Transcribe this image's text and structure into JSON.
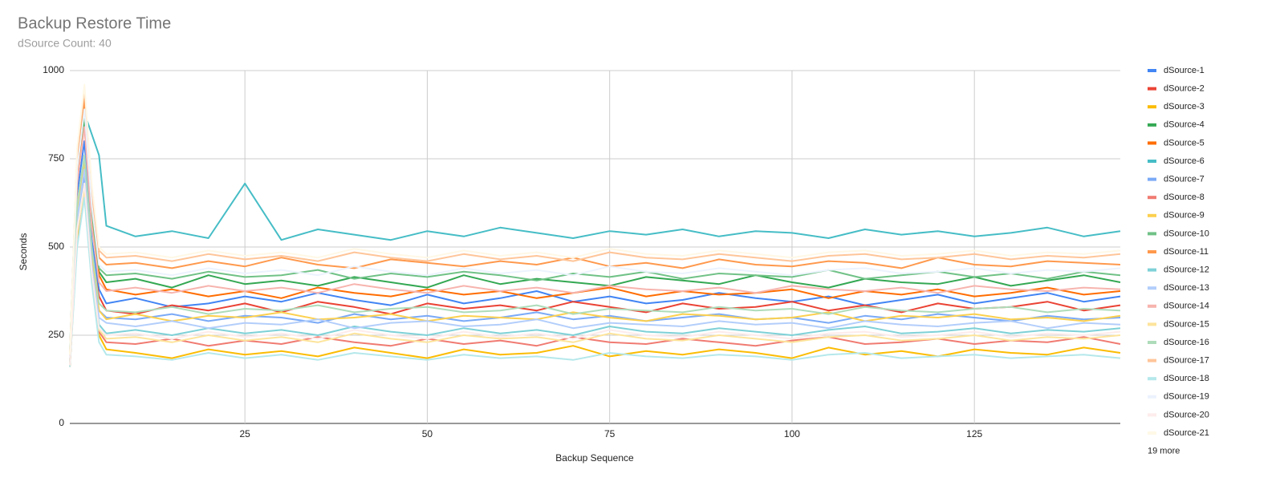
{
  "chart_data": {
    "type": "line",
    "title": "Backup Restore Time",
    "subtitle": "dSource Count: 40",
    "x_label": "Backup Sequence",
    "y_label": "Seconds",
    "xlim": [
      1,
      145
    ],
    "xticks": [
      25,
      50,
      75,
      100,
      125
    ],
    "ylim": [
      0,
      1000
    ],
    "yticks": [
      0,
      250,
      500,
      750,
      1000
    ],
    "grid": true,
    "legend": "right",
    "legend_more": "19 more",
    "x": [
      1,
      2,
      3,
      4,
      5,
      6,
      10,
      15,
      20,
      25,
      30,
      35,
      40,
      45,
      50,
      55,
      60,
      65,
      70,
      75,
      80,
      85,
      90,
      95,
      100,
      105,
      110,
      115,
      120,
      125,
      130,
      135,
      140,
      145
    ],
    "series": [
      {
        "name": "dSource-1",
        "color": "#4285f4",
        "values": [
          180,
          650,
          800,
          520,
          380,
          340,
          355,
          330,
          340,
          360,
          345,
          370,
          350,
          335,
          365,
          340,
          355,
          375,
          345,
          360,
          340,
          350,
          370,
          355,
          345,
          360,
          335,
          350,
          365,
          340,
          355,
          370,
          345,
          360
        ]
      },
      {
        "name": "dSource-2",
        "color": "#ea4335",
        "values": [
          170,
          600,
          720,
          480,
          360,
          320,
          310,
          335,
          320,
          340,
          315,
          345,
          330,
          310,
          340,
          325,
          335,
          320,
          345,
          330,
          315,
          340,
          325,
          330,
          345,
          320,
          335,
          315,
          340,
          325,
          330,
          345,
          320,
          335
        ]
      },
      {
        "name": "dSource-3",
        "color": "#fbbc04",
        "values": [
          160,
          520,
          680,
          420,
          250,
          210,
          200,
          185,
          210,
          195,
          205,
          190,
          215,
          200,
          185,
          210,
          195,
          200,
          220,
          190,
          205,
          195,
          210,
          200,
          185,
          215,
          195,
          205,
          190,
          210,
          200,
          195,
          215,
          200
        ]
      },
      {
        "name": "dSource-4",
        "color": "#34a853",
        "values": [
          190,
          700,
          860,
          560,
          430,
          400,
          410,
          385,
          420,
          395,
          405,
          390,
          415,
          400,
          385,
          420,
          395,
          410,
          400,
          390,
          415,
          405,
          395,
          420,
          400,
          385,
          410,
          400,
          395,
          415,
          390,
          405,
          420,
          400
        ]
      },
      {
        "name": "dSource-5",
        "color": "#ff6d01",
        "values": [
          175,
          680,
          900,
          600,
          420,
          380,
          365,
          380,
          360,
          375,
          355,
          385,
          370,
          360,
          380,
          365,
          375,
          355,
          370,
          385,
          360,
          375,
          365,
          370,
          380,
          355,
          375,
          365,
          380,
          360,
          370,
          385,
          365,
          375
        ]
      },
      {
        "name": "dSource-6",
        "color": "#46bdc6",
        "values": [
          200,
          760,
          880,
          820,
          760,
          560,
          530,
          545,
          525,
          680,
          520,
          550,
          535,
          520,
          545,
          530,
          555,
          540,
          525,
          545,
          535,
          550,
          530,
          545,
          540,
          525,
          550,
          535,
          545,
          530,
          540,
          555,
          530,
          545
        ]
      },
      {
        "name": "dSource-7",
        "color": "#7baaf7",
        "values": [
          170,
          580,
          700,
          460,
          320,
          300,
          295,
          310,
          290,
          305,
          300,
          285,
          310,
          295,
          305,
          290,
          300,
          315,
          295,
          305,
          290,
          300,
          310,
          295,
          300,
          285,
          305,
          295,
          310,
          300,
          290,
          305,
          295,
          300
        ]
      },
      {
        "name": "dSource-8",
        "color": "#f07b72",
        "values": [
          160,
          540,
          650,
          420,
          260,
          230,
          225,
          240,
          220,
          235,
          225,
          245,
          230,
          220,
          240,
          225,
          235,
          220,
          245,
          230,
          225,
          240,
          230,
          220,
          235,
          245,
          225,
          230,
          240,
          225,
          235,
          230,
          245,
          225
        ]
      },
      {
        "name": "dSource-9",
        "color": "#fcd04f",
        "values": [
          170,
          600,
          740,
          480,
          320,
          295,
          310,
          290,
          305,
          300,
          315,
          295,
          300,
          310,
          290,
          305,
          300,
          295,
          315,
          300,
          290,
          310,
          305,
          295,
          300,
          315,
          290,
          305,
          300,
          310,
          295,
          300,
          290,
          305
        ]
      },
      {
        "name": "dSource-10",
        "color": "#71c287",
        "values": [
          185,
          720,
          880,
          600,
          440,
          420,
          425,
          410,
          430,
          415,
          420,
          435,
          410,
          425,
          415,
          430,
          420,
          405,
          425,
          415,
          430,
          410,
          425,
          420,
          415,
          435,
          410,
          420,
          430,
          415,
          425,
          410,
          430,
          420
        ]
      },
      {
        "name": "dSource-11",
        "color": "#ff994d",
        "values": [
          190,
          740,
          920,
          640,
          470,
          450,
          455,
          440,
          460,
          445,
          470,
          450,
          440,
          465,
          455,
          445,
          460,
          450,
          470,
          445,
          455,
          440,
          465,
          450,
          445,
          460,
          455,
          440,
          470,
          450,
          445,
          460,
          455,
          450
        ]
      },
      {
        "name": "dSource-12",
        "color": "#7ed1d7",
        "values": [
          165,
          560,
          680,
          430,
          280,
          255,
          265,
          250,
          270,
          255,
          265,
          250,
          275,
          260,
          250,
          270,
          255,
          265,
          250,
          275,
          260,
          255,
          270,
          260,
          250,
          265,
          275,
          255,
          260,
          270,
          255,
          265,
          260,
          270
        ]
      },
      {
        "name": "dSource-13",
        "color": "#b3cefb",
        "values": [
          170,
          580,
          720,
          450,
          300,
          285,
          275,
          290,
          270,
          285,
          280,
          295,
          270,
          285,
          290,
          275,
          280,
          295,
          270,
          285,
          280,
          275,
          290,
          280,
          285,
          270,
          290,
          280,
          275,
          285,
          290,
          270,
          285,
          280
        ]
      },
      {
        "name": "dSource-14",
        "color": "#f7b4ae",
        "values": [
          180,
          680,
          840,
          560,
          400,
          375,
          385,
          370,
          390,
          375,
          385,
          370,
          395,
          380,
          370,
          390,
          375,
          385,
          370,
          390,
          380,
          375,
          385,
          370,
          390,
          380,
          375,
          385,
          370,
          390,
          380,
          375,
          385,
          380
        ]
      },
      {
        "name": "dSource-15",
        "color": "#fde49b",
        "values": [
          165,
          540,
          660,
          420,
          265,
          240,
          245,
          230,
          250,
          235,
          245,
          230,
          255,
          240,
          230,
          250,
          240,
          245,
          230,
          255,
          240,
          235,
          250,
          240,
          230,
          245,
          250,
          235,
          240,
          250,
          235,
          245,
          240,
          250
        ]
      },
      {
        "name": "dSource-16",
        "color": "#aedcba",
        "values": [
          175,
          620,
          760,
          500,
          340,
          320,
          315,
          330,
          310,
          325,
          320,
          335,
          315,
          325,
          330,
          315,
          320,
          335,
          310,
          325,
          320,
          315,
          330,
          320,
          325,
          310,
          330,
          320,
          315,
          325,
          330,
          315,
          325,
          320
        ]
      },
      {
        "name": "dSource-17",
        "color": "#ffc599",
        "values": [
          195,
          760,
          950,
          660,
          490,
          470,
          475,
          460,
          480,
          465,
          475,
          460,
          485,
          470,
          460,
          480,
          465,
          475,
          460,
          485,
          470,
          465,
          480,
          470,
          460,
          475,
          480,
          465,
          470,
          480,
          465,
          475,
          470,
          480
        ]
      },
      {
        "name": "dSource-18",
        "color": "#b5e8eb",
        "values": [
          160,
          500,
          640,
          400,
          230,
          195,
          190,
          180,
          200,
          185,
          195,
          180,
          200,
          190,
          180,
          195,
          185,
          190,
          180,
          200,
          190,
          185,
          195,
          190,
          180,
          195,
          200,
          185,
          190,
          195,
          185,
          190,
          195,
          185
        ]
      },
      {
        "name": "dSource-19",
        "color": "#ecf3fe",
        "values": [
          185,
          720,
          890,
          620,
          450,
          430,
          435,
          420,
          440,
          425,
          435,
          420,
          445,
          430,
          420,
          440,
          425,
          435,
          420,
          445,
          430,
          425,
          440,
          430,
          420,
          435,
          440,
          425,
          430,
          440,
          425,
          435,
          430,
          440
        ]
      },
      {
        "name": "dSource-20",
        "color": "#fdeceb",
        "values": [
          165,
          550,
          680,
          430,
          270,
          250,
          255,
          240,
          260,
          245,
          255,
          240,
          265,
          250,
          240,
          260,
          245,
          255,
          240,
          265,
          250,
          245,
          260,
          250,
          240,
          255,
          260,
          245,
          250,
          260,
          245,
          255,
          250,
          260
        ]
      },
      {
        "name": "dSource-21",
        "color": "#fff8e6",
        "values": [
          195,
          780,
          960,
          680,
          500,
          480,
          485,
          470,
          490,
          475,
          485,
          470,
          495,
          480,
          470,
          490,
          475,
          485,
          470,
          495,
          480,
          475,
          490,
          480,
          470,
          485,
          490,
          475,
          480,
          490,
          475,
          485,
          480,
          490
        ]
      }
    ]
  }
}
